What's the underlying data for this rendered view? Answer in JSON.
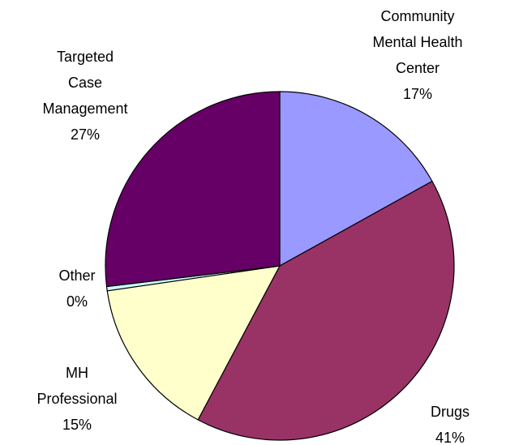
{
  "chart_data": {
    "type": "pie",
    "categories": [
      "Community Mental Health Center",
      "Drugs",
      "MH Professional",
      "Other",
      "Targeted Case Management"
    ],
    "values": [
      17,
      41,
      15,
      0.4,
      27
    ],
    "value_labels": [
      "17%",
      "41%",
      "15%",
      "0%",
      "27%"
    ],
    "colors": [
      "#9999ff",
      "#993366",
      "#ffffcc",
      "#ccffff",
      "#660066"
    ]
  }
}
